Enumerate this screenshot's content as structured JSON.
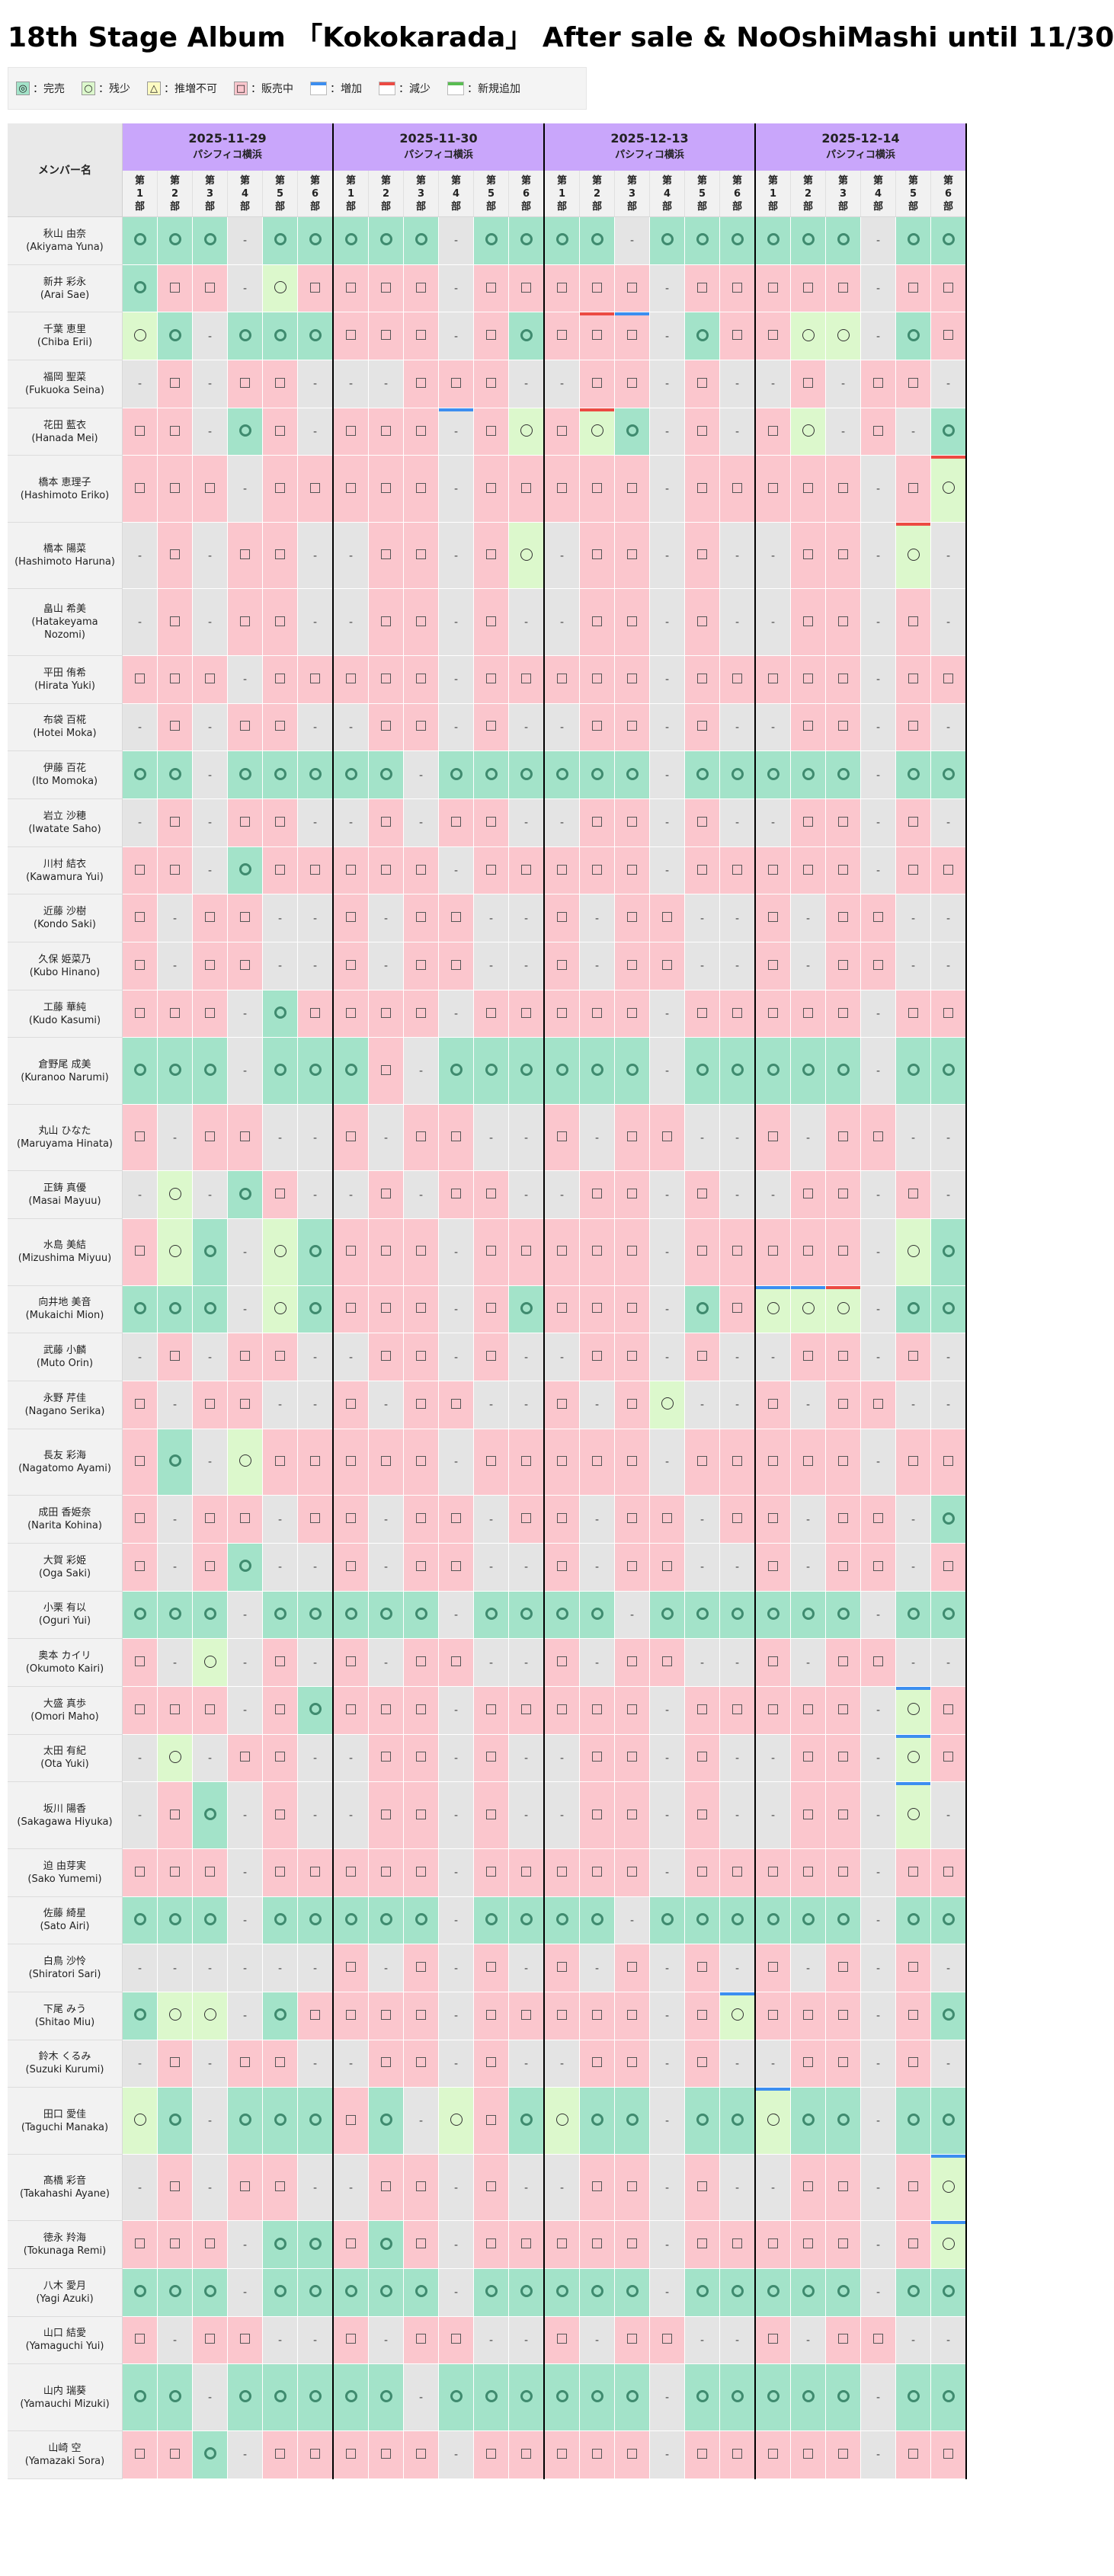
{
  "title": "18th Stage Album 「Kokokarada」 After sale & NoOshiMashi until 11/30",
  "legend": [
    {
      "key": "sold",
      "label": "：完売"
    },
    {
      "key": "few",
      "label": "：残少"
    },
    {
      "key": "nrec",
      "label": "：推増不可"
    },
    {
      "key": "sale",
      "label": "：販売中"
    },
    {
      "key": "inc",
      "label": "：増加"
    },
    {
      "key": "dec",
      "label": "：減少"
    },
    {
      "key": "new",
      "label": "：新規追加"
    }
  ],
  "colors": {
    "sold": "#a3e3c9",
    "few": "#dcf8cc",
    "sale": "#fbc6cd",
    "na": "#e4e4e4",
    "header": "#c9a6fb",
    "increase": "#3c8ef0",
    "decrease": "#ec4a43",
    "new": "#59bd52"
  },
  "table": {
    "name_header": "メンバー名",
    "part_labels": [
      "第1部",
      "第2部",
      "第3部",
      "第4部",
      "第5部",
      "第6部"
    ],
    "dates": [
      {
        "date": "2025-11-29",
        "venue": "パシフィコ横浜"
      },
      {
        "date": "2025-11-30",
        "venue": "パシフィコ横浜"
      },
      {
        "date": "2025-12-13",
        "venue": "パシフィコ横浜"
      },
      {
        "date": "2025-12-14",
        "venue": "パシフィコ横浜"
      }
    ],
    "members": [
      {
        "jp": "秋山 由奈",
        "en": "(Akiyama Yuna)",
        "lines": 1,
        "s": "SSS-SS SSS-SS SS-SSS SSS-SS"
      },
      {
        "jp": "新井 彩永",
        "en": "(Arai Sae)",
        "lines": 1,
        "s": "SDD-FD DDD-DD DDD-DD DDD-DD"
      },
      {
        "jp": "千葉 恵里",
        "en": "(Chiba Erii)",
        "lines": 1,
        "s": "FS-SSS DDD-DS DDD-SD DFF-SD",
        "m": {
          "21": "d",
          "22": "i"
        }
      },
      {
        "jp": "福岡 聖菜",
        "en": "(Fukuoka Seina)",
        "lines": 1,
        "s": "-D-DD- --DDD- -DD-D- -D-DD-"
      },
      {
        "jp": "花田 藍衣",
        "en": "(Hanada Mei)",
        "lines": 1,
        "s": "DD-SD- DDD-DF DFS-D- DF-D-S",
        "m": {
          "13": "i",
          "21": "d"
        }
      },
      {
        "jp": "橋本 恵理子",
        "en": "(Hashimoto Eriko)",
        "lines": 2,
        "s": "DDD-DD DDD-DD DDD-DD DDD-DF",
        "m": {
          "35": "d"
        }
      },
      {
        "jp": "橋本 陽菜",
        "en": "(Hashimoto Haruna)",
        "lines": 2,
        "s": "-D-DD- -DD-DF -DD-D- -DD-F-",
        "m": {
          "34": "d"
        }
      },
      {
        "jp": "畠山 希美",
        "en": "(Hatakeyama Nozomi)",
        "lines": 2,
        "s": "-D-DD- -DD-D- -DD-D- -DD-D-"
      },
      {
        "jp": "平田 侑希",
        "en": "(Hirata Yuki)",
        "lines": 1,
        "s": "DDD-DD DDD-DD DDD-DD DDD-DD"
      },
      {
        "jp": "布袋 百椛",
        "en": "(Hotei Moka)",
        "lines": 1,
        "s": "-D-DD- -DD-D- -DD-D- -DD-D-"
      },
      {
        "jp": "伊藤 百花",
        "en": "(Ito Momoka)",
        "lines": 1,
        "s": "SS-SSS SS-SSS SSS-SS SSS-SS"
      },
      {
        "jp": "岩立 沙穂",
        "en": "(Iwatate Saho)",
        "lines": 1,
        "s": "-D-DD- -D-DD- -DD-D- -DD-D-"
      },
      {
        "jp": "川村 結衣",
        "en": "(Kawamura Yui)",
        "lines": 1,
        "s": "DD-SDD DDD-DD DDD-DD DDD-DD"
      },
      {
        "jp": "近藤 沙樹",
        "en": "(Kondo Saki)",
        "lines": 1,
        "s": "D-DD-- D-DD-- D-DD-- D-DD--"
      },
      {
        "jp": "久保 姫菜乃",
        "en": "(Kubo Hinano)",
        "lines": 1,
        "s": "D-DD-- D-DD-- D-DD-- D-DD--"
      },
      {
        "jp": "工藤 華純",
        "en": "(Kudo Kasumi)",
        "lines": 1,
        "s": "DDD-SD DDD-DD DDD-DD DDD-DD"
      },
      {
        "jp": "倉野尾 成美",
        "en": "(Kuranoo Narumi)",
        "lines": 2,
        "s": "SSS-SS SD-SSS SSS-SS SSS-SS"
      },
      {
        "jp": "丸山 ひなた",
        "en": "(Maruyama Hinata)",
        "lines": 2,
        "s": "D-DD-- D-DD-- D-DD-- D-DD--"
      },
      {
        "jp": "正鋳 真優",
        "en": "(Masai Mayuu)",
        "lines": 1,
        "s": "-F-SD- -D-DD- -DD-D- -DD-D-"
      },
      {
        "jp": "水島 美結",
        "en": "(Mizushima Miyuu)",
        "lines": 2,
        "s": "DFS-FS DDD-DD DDD-DD DDD-FS"
      },
      {
        "jp": "向井地 美音",
        "en": "(Mukaichi Mion)",
        "lines": 1,
        "s": "SSS-FS DDD-DS DDD-SD FFF-SS",
        "m": {
          "30": "i",
          "31": "i",
          "32": "d"
        }
      },
      {
        "jp": "武藤 小麟",
        "en": "(Muto Orin)",
        "lines": 1,
        "s": "-D-DD- -DD-D- -DD-D- -DD-D-"
      },
      {
        "jp": "永野 芹佳",
        "en": "(Nagano Serika)",
        "lines": 1,
        "s": "D-DD-- D-DD-- D-DF-- D-DD--"
      },
      {
        "jp": "長友 彩海",
        "en": "(Nagatomo Ayami)",
        "lines": 2,
        "s": "DS-FDD DDD-DD DDD-DD DDD-DD"
      },
      {
        "jp": "成田 香姫奈",
        "en": "(Narita Kohina)",
        "lines": 1,
        "s": "D-DD-D D-DD-D D-DD-D D-DD-S"
      },
      {
        "jp": "大賀 彩姫",
        "en": "(Oga Saki)",
        "lines": 1,
        "s": "D-DS-- D-DD-- D-DD-- D-DD-D"
      },
      {
        "jp": "小栗 有以",
        "en": "(Oguri Yui)",
        "lines": 1,
        "s": "SSS-SS SSS-SS SS-SSS SSS-SS"
      },
      {
        "jp": "奥本 カイリ",
        "en": "(Okumoto Kairi)",
        "lines": 1,
        "s": "D-F-D- D-DD-- D-DD-- D-DD--"
      },
      {
        "jp": "大盛 真歩",
        "en": "(Omori Maho)",
        "lines": 1,
        "s": "DDD-DS DDD-DD DDD-DD DDD-FD",
        "m": {
          "34": "i"
        }
      },
      {
        "jp": "太田 有紀",
        "en": "(Ota Yuki)",
        "lines": 1,
        "s": "-F-DD- -DD-D- -DD-D- -DD-FD",
        "m": {
          "34": "i"
        }
      },
      {
        "jp": "坂川 陽香",
        "en": "(Sakagawa Hiyuka)",
        "lines": 2,
        "s": "-DS-D- -DD-D- -DD-D- -DD-F-",
        "m": {
          "34": "i"
        }
      },
      {
        "jp": "迫 由芽実",
        "en": "(Sako Yumemi)",
        "lines": 1,
        "s": "DDD-DD DDD-DD DDD-DD DDD-DD"
      },
      {
        "jp": "佐藤 綺星",
        "en": "(Sato Airi)",
        "lines": 1,
        "s": "SSS-SS SSS-SS SS-SSS SSS-SS"
      },
      {
        "jp": "白鳥 沙怜",
        "en": "(Shiratori Sari)",
        "lines": 1,
        "s": "------ D-D-D- D-D-D- D-D-D-"
      },
      {
        "jp": "下尾 みう",
        "en": "(Shitao Miu)",
        "lines": 1,
        "s": "SFF-SD DDD-DD DDD-DF DDD-DS",
        "m": {
          "25": "i"
        }
      },
      {
        "jp": "鈴木 くるみ",
        "en": "(Suzuki Kurumi)",
        "lines": 1,
        "s": "-D-DD- -DD-D- -DD-D- -DD-D-"
      },
      {
        "jp": "田口 愛佳",
        "en": "(Taguchi Manaka)",
        "lines": 2,
        "s": "FS-SSS DS-FDS FSS-SS FSS-SS",
        "m": {
          "30": "i"
        }
      },
      {
        "jp": "髙橋 彩音",
        "en": "(Takahashi Ayane)",
        "lines": 2,
        "s": "-D-DD- -DD-D- -DD-D- -DD-DF",
        "m": {
          "35": "i"
        }
      },
      {
        "jp": "徳永 羚海",
        "en": "(Tokunaga Remi)",
        "lines": 1,
        "s": "DDD-SS DSD-DD DDD-DD DDD-DF",
        "m": {
          "35": "i"
        }
      },
      {
        "jp": "八木 愛月",
        "en": "(Yagi Azuki)",
        "lines": 1,
        "s": "SSS-SS SSS-SS SSS-SS SSS-SS"
      },
      {
        "jp": "山口 結愛",
        "en": "(Yamaguchi Yui)",
        "lines": 1,
        "s": "D-DD-- D-DD-- D-DD-- D-DD--"
      },
      {
        "jp": "山内 瑞葵",
        "en": "(Yamauchi Mizuki)",
        "lines": 2,
        "s": "SS-SSS SS-SSS SSS-SS SSS-SS"
      },
      {
        "jp": "山崎 空",
        "en": "(Yamazaki Sora)",
        "lines": 1,
        "s": "DDS-DD DDD-DD DDD-DD DDD-DD"
      }
    ]
  }
}
